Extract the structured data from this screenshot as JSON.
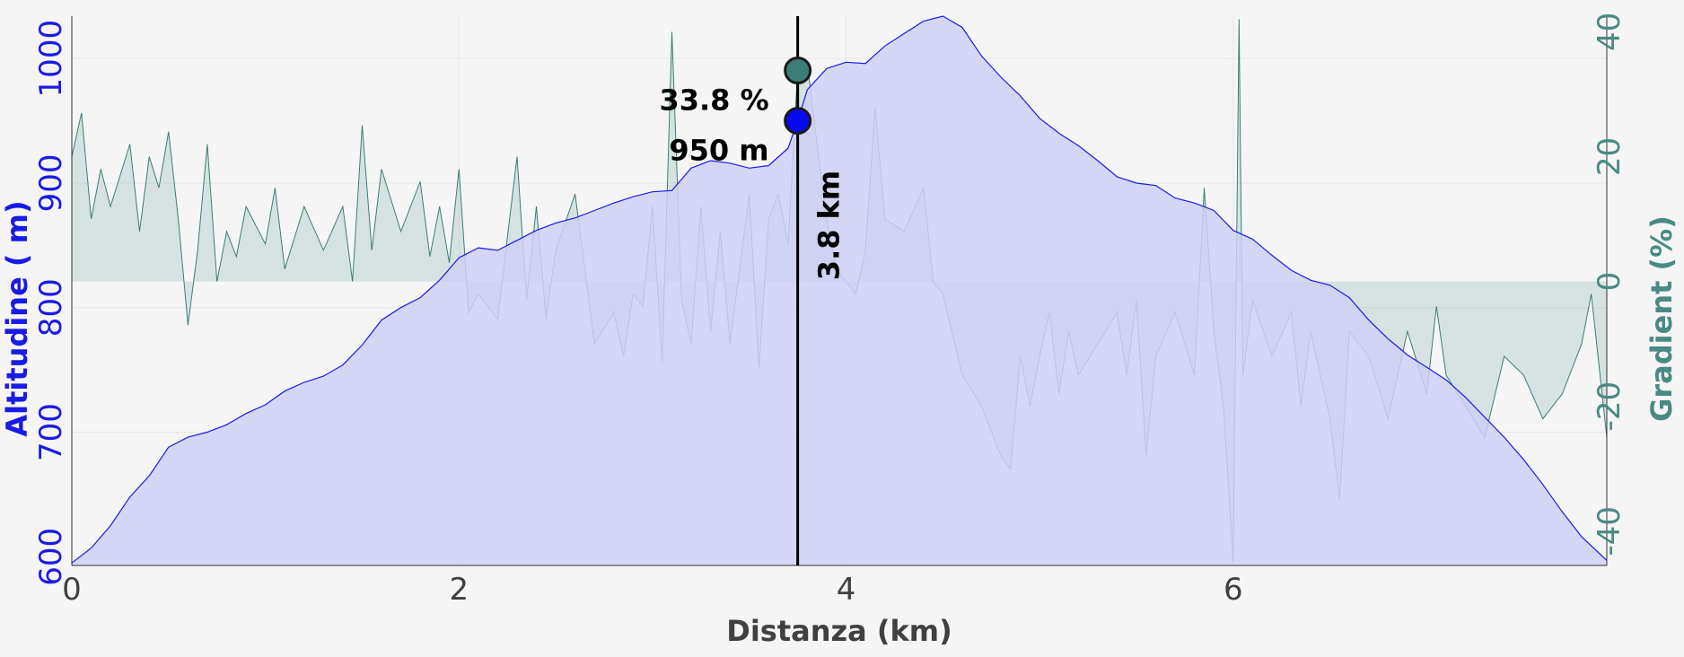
{
  "chart_data": {
    "type": "area",
    "xlabel": "Distanza (km)",
    "ylabel_left": "Altitudine ( m)",
    "ylabel_right": "Gradient (%)",
    "xlim": [
      0,
      7.93
    ],
    "ylim_left": [
      593,
      1034
    ],
    "ylim_right": [
      -45.5,
      42.5
    ],
    "x_ticks": [
      "0",
      "2",
      "4",
      "6"
    ],
    "y_left_ticks": [
      "600",
      "700",
      "800",
      "900",
      "1000"
    ],
    "y_right_ticks": [
      "-40",
      "-20",
      "0",
      "20",
      "40"
    ],
    "grid": true,
    "colors": {
      "altitude_fill": "#cfcff5",
      "altitude_line": "#1a1ae6",
      "gradient_fill": "#4f8f88",
      "gradient_line": "#3d7d77",
      "left_axis": "#1a1ae6",
      "right_axis": "#4a8a84",
      "tick_x": "#404040"
    },
    "series": [
      {
        "name": "Altitudine",
        "axis": "left",
        "points": [
          [
            0,
            595
          ],
          [
            0.1,
            607
          ],
          [
            0.2,
            625
          ],
          [
            0.3,
            648
          ],
          [
            0.4,
            665
          ],
          [
            0.5,
            688
          ],
          [
            0.6,
            696
          ],
          [
            0.7,
            700
          ],
          [
            0.8,
            706
          ],
          [
            0.9,
            715
          ],
          [
            1.0,
            722
          ],
          [
            1.1,
            733
          ],
          [
            1.2,
            740
          ],
          [
            1.3,
            745
          ],
          [
            1.4,
            754
          ],
          [
            1.5,
            770
          ],
          [
            1.6,
            790
          ],
          [
            1.7,
            800
          ],
          [
            1.8,
            808
          ],
          [
            1.9,
            822
          ],
          [
            2.0,
            840
          ],
          [
            2.1,
            848
          ],
          [
            2.2,
            846
          ],
          [
            2.3,
            854
          ],
          [
            2.4,
            862
          ],
          [
            2.5,
            868
          ],
          [
            2.6,
            872
          ],
          [
            2.7,
            878
          ],
          [
            2.8,
            884
          ],
          [
            2.9,
            889
          ],
          [
            3.0,
            893
          ],
          [
            3.1,
            894
          ],
          [
            3.2,
            912
          ],
          [
            3.3,
            918
          ],
          [
            3.4,
            916
          ],
          [
            3.5,
            912
          ],
          [
            3.6,
            914
          ],
          [
            3.7,
            928
          ],
          [
            3.75,
            950
          ],
          [
            3.8,
            975
          ],
          [
            3.9,
            992
          ],
          [
            4.0,
            997
          ],
          [
            4.1,
            996
          ],
          [
            4.2,
            1010
          ],
          [
            4.3,
            1020
          ],
          [
            4.4,
            1030
          ],
          [
            4.5,
            1034
          ],
          [
            4.6,
            1025
          ],
          [
            4.7,
            1002
          ],
          [
            4.8,
            985
          ],
          [
            4.9,
            970
          ],
          [
            5.0,
            952
          ],
          [
            5.1,
            940
          ],
          [
            5.2,
            930
          ],
          [
            5.3,
            918
          ],
          [
            5.4,
            905
          ],
          [
            5.5,
            900
          ],
          [
            5.6,
            898
          ],
          [
            5.7,
            888
          ],
          [
            5.8,
            884
          ],
          [
            5.9,
            878
          ],
          [
            6.0,
            862
          ],
          [
            6.1,
            855
          ],
          [
            6.2,
            842
          ],
          [
            6.3,
            830
          ],
          [
            6.4,
            822
          ],
          [
            6.5,
            818
          ],
          [
            6.6,
            808
          ],
          [
            6.7,
            790
          ],
          [
            6.8,
            775
          ],
          [
            6.9,
            762
          ],
          [
            7.0,
            752
          ],
          [
            7.1,
            742
          ],
          [
            7.2,
            728
          ],
          [
            7.3,
            712
          ],
          [
            7.4,
            696
          ],
          [
            7.5,
            678
          ],
          [
            7.6,
            658
          ],
          [
            7.7,
            636
          ],
          [
            7.8,
            616
          ],
          [
            7.93,
            597
          ]
        ]
      },
      {
        "name": "Gradient",
        "axis": "right",
        "points": [
          [
            0,
            20
          ],
          [
            0.05,
            27
          ],
          [
            0.1,
            10
          ],
          [
            0.15,
            18
          ],
          [
            0.2,
            12
          ],
          [
            0.3,
            22
          ],
          [
            0.35,
            8
          ],
          [
            0.4,
            20
          ],
          [
            0.45,
            15
          ],
          [
            0.5,
            24
          ],
          [
            0.55,
            10
          ],
          [
            0.6,
            -7
          ],
          [
            0.65,
            5
          ],
          [
            0.7,
            22
          ],
          [
            0.75,
            0
          ],
          [
            0.8,
            8
          ],
          [
            0.85,
            4
          ],
          [
            0.9,
            12
          ],
          [
            1.0,
            6
          ],
          [
            1.05,
            15
          ],
          [
            1.1,
            2
          ],
          [
            1.2,
            12
          ],
          [
            1.3,
            5
          ],
          [
            1.4,
            12
          ],
          [
            1.45,
            0
          ],
          [
            1.5,
            25
          ],
          [
            1.55,
            5
          ],
          [
            1.6,
            18
          ],
          [
            1.7,
            8
          ],
          [
            1.8,
            16
          ],
          [
            1.85,
            4
          ],
          [
            1.9,
            12
          ],
          [
            1.95,
            3
          ],
          [
            2.0,
            18
          ],
          [
            2.05,
            -5
          ],
          [
            2.1,
            -2
          ],
          [
            2.2,
            -6
          ],
          [
            2.3,
            20
          ],
          [
            2.35,
            -3
          ],
          [
            2.4,
            12
          ],
          [
            2.45,
            -6
          ],
          [
            2.5,
            5
          ],
          [
            2.6,
            14
          ],
          [
            2.7,
            -10
          ],
          [
            2.8,
            -5
          ],
          [
            2.85,
            -12
          ],
          [
            2.9,
            -2
          ],
          [
            2.95,
            -4
          ],
          [
            3.0,
            12
          ],
          [
            3.05,
            -13
          ],
          [
            3.1,
            40
          ],
          [
            3.15,
            -3
          ],
          [
            3.2,
            -10
          ],
          [
            3.25,
            12
          ],
          [
            3.3,
            -8
          ],
          [
            3.35,
            8
          ],
          [
            3.4,
            -10
          ],
          [
            3.5,
            14
          ],
          [
            3.55,
            -14
          ],
          [
            3.6,
            10
          ],
          [
            3.65,
            14
          ],
          [
            3.7,
            6
          ],
          [
            3.75,
            33.8
          ],
          [
            3.8,
            35
          ],
          [
            3.85,
            22
          ],
          [
            3.9,
            10
          ],
          [
            3.95,
            2
          ],
          [
            4.0,
            0
          ],
          [
            4.05,
            -2
          ],
          [
            4.1,
            5
          ],
          [
            4.15,
            28
          ],
          [
            4.2,
            10
          ],
          [
            4.3,
            8
          ],
          [
            4.4,
            15
          ],
          [
            4.45,
            0
          ],
          [
            4.5,
            -2
          ],
          [
            4.6,
            -15
          ],
          [
            4.7,
            -20
          ],
          [
            4.8,
            -28
          ],
          [
            4.85,
            -30
          ],
          [
            4.9,
            -12
          ],
          [
            4.95,
            -20
          ],
          [
            5.0,
            -12
          ],
          [
            5.05,
            -5
          ],
          [
            5.1,
            -18
          ],
          [
            5.15,
            -8
          ],
          [
            5.2,
            -15
          ],
          [
            5.3,
            -10
          ],
          [
            5.4,
            -5
          ],
          [
            5.45,
            -15
          ],
          [
            5.5,
            -3
          ],
          [
            5.55,
            -28
          ],
          [
            5.6,
            -12
          ],
          [
            5.7,
            -5
          ],
          [
            5.8,
            -15
          ],
          [
            5.85,
            15
          ],
          [
            5.9,
            -8
          ],
          [
            5.95,
            -20
          ],
          [
            6.0,
            -45
          ],
          [
            6.03,
            42
          ],
          [
            6.05,
            -15
          ],
          [
            6.1,
            -3
          ],
          [
            6.2,
            -12
          ],
          [
            6.3,
            -5
          ],
          [
            6.35,
            -20
          ],
          [
            6.4,
            -8
          ],
          [
            6.5,
            -22
          ],
          [
            6.55,
            -35
          ],
          [
            6.6,
            -8
          ],
          [
            6.7,
            -12
          ],
          [
            6.8,
            -22
          ],
          [
            6.9,
            -8
          ],
          [
            7.0,
            -18
          ],
          [
            7.05,
            -4
          ],
          [
            7.1,
            -15
          ],
          [
            7.2,
            -20
          ],
          [
            7.3,
            -25
          ],
          [
            7.4,
            -12
          ],
          [
            7.5,
            -15
          ],
          [
            7.6,
            -22
          ],
          [
            7.7,
            -18
          ],
          [
            7.8,
            -10
          ],
          [
            7.85,
            -2
          ],
          [
            7.93,
            -25
          ]
        ]
      }
    ],
    "marker": {
      "x": 3.75,
      "x_label": "3.8 km",
      "altitude": 950,
      "altitude_label": "950 m",
      "gradient": 33.8,
      "gradient_label": "33.8 %"
    }
  }
}
